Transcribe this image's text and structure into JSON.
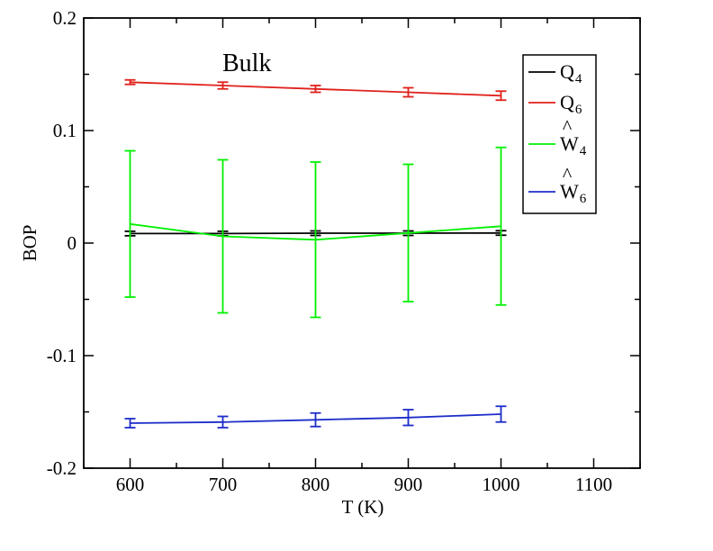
{
  "chart_data": {
    "type": "line",
    "title": "",
    "annotation": "Bulk",
    "xlabel": "T (K)",
    "ylabel": "BOP",
    "xlim": [
      550,
      1150
    ],
    "ylim": [
      -0.2,
      0.2
    ],
    "xticks": [
      600,
      700,
      800,
      900,
      1000,
      1100
    ],
    "yticks": [
      -0.2,
      -0.1,
      0,
      0.1,
      0.2
    ],
    "ytick_labels": [
      "-0.2",
      "-0.1",
      "0",
      "0.1",
      "0.2"
    ],
    "x": [
      600,
      700,
      800,
      900,
      1000
    ],
    "grid": false,
    "legend": "top-right",
    "series": [
      {
        "name": "Q4",
        "base": "Q",
        "sub": "4",
        "hat": false,
        "color": "#000000",
        "values": [
          0.0085,
          0.0085,
          0.0088,
          0.0088,
          0.009
        ],
        "errors": [
          0.002,
          0.002,
          0.002,
          0.002,
          0.002
        ]
      },
      {
        "name": "Q6",
        "base": "Q",
        "sub": "6",
        "hat": false,
        "color": "#e0211c",
        "values": [
          0.143,
          0.14,
          0.137,
          0.134,
          0.131
        ],
        "errors": [
          0.002,
          0.003,
          0.003,
          0.004,
          0.004
        ]
      },
      {
        "name": "W4",
        "base": "W",
        "sub": "4",
        "hat": true,
        "color": "#00f000",
        "values": [
          0.017,
          0.006,
          0.003,
          0.009,
          0.015
        ],
        "errors": [
          0.065,
          0.068,
          0.069,
          0.061,
          0.07
        ]
      },
      {
        "name": "W6",
        "base": "W",
        "sub": "6",
        "hat": true,
        "color": "#1d2dc9",
        "values": [
          -0.16,
          -0.159,
          -0.157,
          -0.155,
          -0.152
        ],
        "errors": [
          0.004,
          0.005,
          0.006,
          0.007,
          0.007
        ]
      }
    ]
  }
}
